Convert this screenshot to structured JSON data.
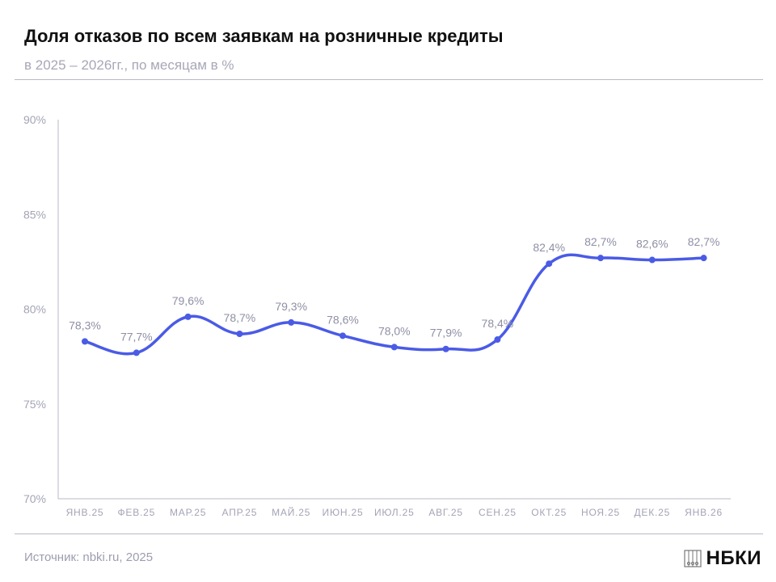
{
  "title": "Доля отказов по всем заявкам на розничные кредиты",
  "subtitle": "в 2025 – 2026гг., по месяцам в %",
  "source": "Источник: nbki.ru, 2025",
  "logo": "НБКИ",
  "colors": {
    "line": "#4a5be6",
    "label": "#8f8fa6",
    "axis": "#b9b9c4"
  },
  "chart_data": {
    "type": "line",
    "title": "Доля отказов по всем заявкам на розничные кредиты",
    "xlabel": "",
    "ylabel": "",
    "ylim": [
      70,
      90
    ],
    "yticks": [
      70,
      75,
      80,
      85,
      90
    ],
    "ytick_labels": [
      "70%",
      "75%",
      "80%",
      "85%",
      "90%"
    ],
    "categories": [
      "ЯНВ.25",
      "ФЕВ.25",
      "МАР.25",
      "АПР.25",
      "МАЙ.25",
      "ИЮН.25",
      "ИЮЛ.25",
      "АВГ.25",
      "СЕН.25",
      "ОКТ.25",
      "НОЯ.25",
      "ДЕК.25",
      "ЯНВ.26"
    ],
    "values": [
      78.3,
      77.7,
      79.6,
      78.7,
      79.3,
      78.6,
      78.0,
      77.9,
      78.4,
      82.4,
      82.7,
      82.6,
      82.7
    ],
    "data_labels": [
      "78,3%",
      "77,7%",
      "79,6%",
      "78,7%",
      "79,3%",
      "78,6%",
      "78,0%",
      "77,9%",
      "78,4%",
      "82,4%",
      "82,7%",
      "82,6%",
      "82,7%"
    ],
    "grid": false
  }
}
